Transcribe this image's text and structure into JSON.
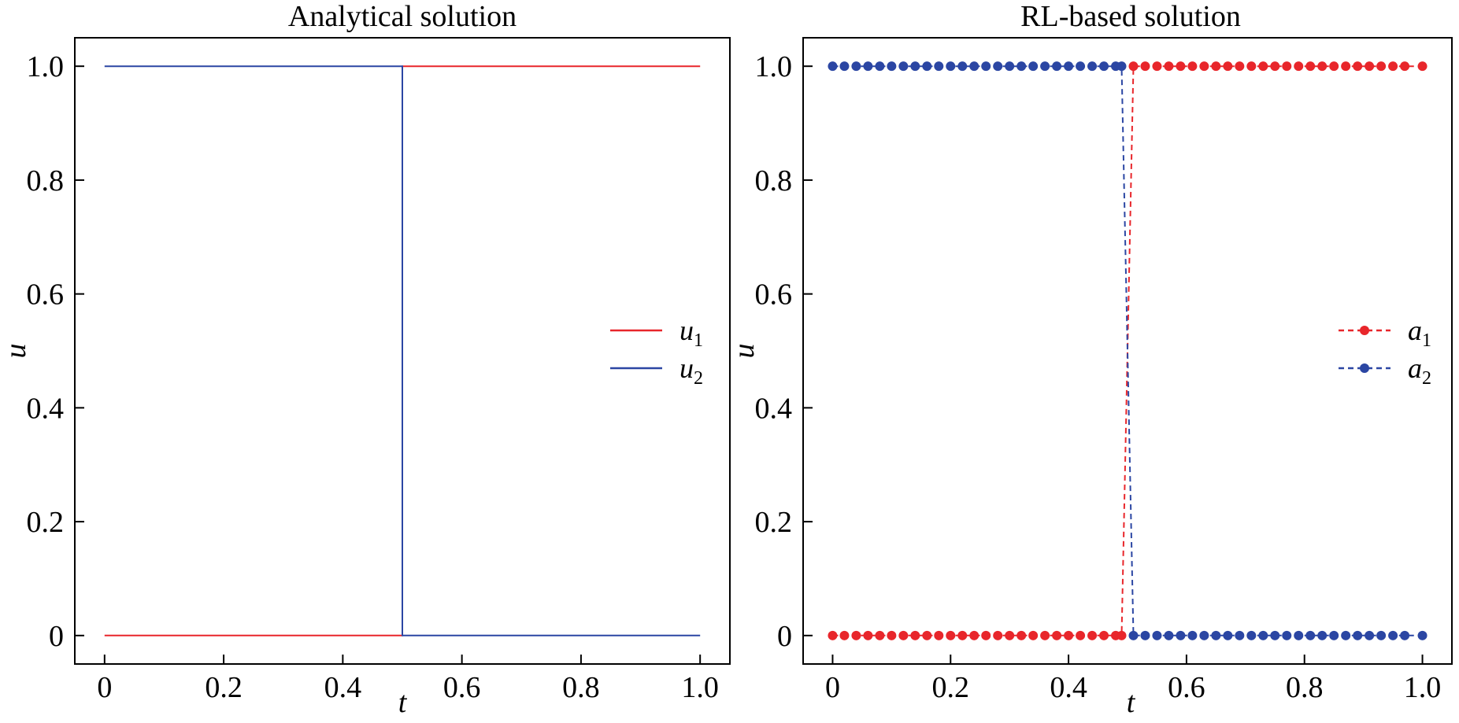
{
  "chart_data": [
    {
      "type": "line",
      "title": "Analytical solution",
      "xlabel": "t",
      "ylabel": "u",
      "xlim": [
        -0.05,
        1.05
      ],
      "ylim": [
        -0.05,
        1.05
      ],
      "xticks": [
        "0",
        "0.2",
        "0.4",
        "0.6",
        "0.8",
        "1.0"
      ],
      "yticks": [
        "0",
        "0.2",
        "0.4",
        "0.6",
        "0.8",
        "1.0"
      ],
      "grid": false,
      "legend_position": "right",
      "series": [
        {
          "name": "u",
          "subscript": "1",
          "color": "#e8262b",
          "style": "solid",
          "markers": false,
          "x": [
            0,
            0.5,
            0.5,
            1.0
          ],
          "y": [
            0,
            0,
            1,
            1
          ]
        },
        {
          "name": "u",
          "subscript": "2",
          "color": "#2b46a3",
          "style": "solid",
          "markers": false,
          "x": [
            0,
            0.5,
            0.5,
            1.0
          ],
          "y": [
            1,
            1,
            0,
            0
          ]
        }
      ]
    },
    {
      "type": "line",
      "title": "RL-based solution",
      "xlabel": "t",
      "ylabel": "u",
      "xlim": [
        -0.05,
        1.05
      ],
      "ylim": [
        -0.05,
        1.05
      ],
      "xticks": [
        "0",
        "0.2",
        "0.4",
        "0.6",
        "0.8",
        "1.0"
      ],
      "yticks": [
        "0",
        "0.2",
        "0.4",
        "0.6",
        "0.8",
        "1.0"
      ],
      "grid": false,
      "legend_position": "right",
      "series": [
        {
          "name": "a",
          "subscript": "1",
          "color": "#e8262b",
          "style": "dashed",
          "markers": true,
          "x": [
            0,
            0.02,
            0.04,
            0.06,
            0.08,
            0.1,
            0.12,
            0.14,
            0.16,
            0.18,
            0.2,
            0.22,
            0.24,
            0.26,
            0.28,
            0.3,
            0.32,
            0.34,
            0.36,
            0.38,
            0.4,
            0.42,
            0.44,
            0.46,
            0.48,
            0.49,
            0.51,
            0.53,
            0.55,
            0.57,
            0.59,
            0.61,
            0.63,
            0.65,
            0.67,
            0.69,
            0.71,
            0.73,
            0.75,
            0.77,
            0.79,
            0.81,
            0.83,
            0.85,
            0.87,
            0.89,
            0.91,
            0.93,
            0.95,
            0.97,
            1.0
          ],
          "y": [
            0,
            0,
            0,
            0,
            0,
            0,
            0,
            0,
            0,
            0,
            0,
            0,
            0,
            0,
            0,
            0,
            0,
            0,
            0,
            0,
            0,
            0,
            0,
            0,
            0,
            0,
            1,
            1,
            1,
            1,
            1,
            1,
            1,
            1,
            1,
            1,
            1,
            1,
            1,
            1,
            1,
            1,
            1,
            1,
            1,
            1,
            1,
            1,
            1,
            1,
            1
          ]
        },
        {
          "name": "a",
          "subscript": "2",
          "color": "#2b46a3",
          "style": "dashed",
          "markers": true,
          "x": [
            0,
            0.02,
            0.04,
            0.06,
            0.08,
            0.1,
            0.12,
            0.14,
            0.16,
            0.18,
            0.2,
            0.22,
            0.24,
            0.26,
            0.28,
            0.3,
            0.32,
            0.34,
            0.36,
            0.38,
            0.4,
            0.42,
            0.44,
            0.46,
            0.48,
            0.49,
            0.51,
            0.53,
            0.55,
            0.57,
            0.59,
            0.61,
            0.63,
            0.65,
            0.67,
            0.69,
            0.71,
            0.73,
            0.75,
            0.77,
            0.79,
            0.81,
            0.83,
            0.85,
            0.87,
            0.89,
            0.91,
            0.93,
            0.95,
            0.97,
            1.0
          ],
          "y": [
            1,
            1,
            1,
            1,
            1,
            1,
            1,
            1,
            1,
            1,
            1,
            1,
            1,
            1,
            1,
            1,
            1,
            1,
            1,
            1,
            1,
            1,
            1,
            1,
            1,
            1,
            0,
            0,
            0,
            0,
            0,
            0,
            0,
            0,
            0,
            0,
            0,
            0,
            0,
            0,
            0,
            0,
            0,
            0,
            0,
            0,
            0,
            0,
            0,
            0,
            0
          ]
        }
      ]
    }
  ]
}
